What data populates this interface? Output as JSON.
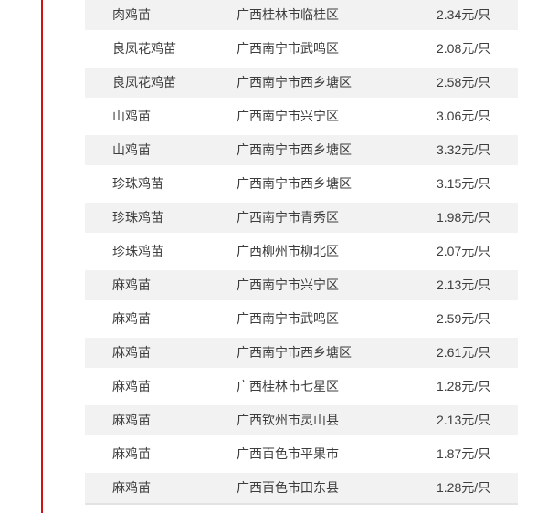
{
  "colors": {
    "accent_line": "#cc1414",
    "stripe_row_bg": "#f2f2f2",
    "text": "#3d3d3d",
    "bottom_border": "#e3e3e3"
  },
  "table": {
    "rows": [
      {
        "product": "肉鸡苗",
        "region": "广西桂林市临桂区",
        "price": "2.34元/只"
      },
      {
        "product": "良凤花鸡苗",
        "region": "广西南宁市武鸣区",
        "price": "2.08元/只"
      },
      {
        "product": "良凤花鸡苗",
        "region": "广西南宁市西乡塘区",
        "price": "2.58元/只"
      },
      {
        "product": "山鸡苗",
        "region": "广西南宁市兴宁区",
        "price": "3.06元/只"
      },
      {
        "product": "山鸡苗",
        "region": "广西南宁市西乡塘区",
        "price": "3.32元/只"
      },
      {
        "product": "珍珠鸡苗",
        "region": "广西南宁市西乡塘区",
        "price": "3.15元/只"
      },
      {
        "product": "珍珠鸡苗",
        "region": "广西南宁市青秀区",
        "price": "1.98元/只"
      },
      {
        "product": "珍珠鸡苗",
        "region": "广西柳州市柳北区",
        "price": "2.07元/只"
      },
      {
        "product": "麻鸡苗",
        "region": "广西南宁市兴宁区",
        "price": "2.13元/只"
      },
      {
        "product": "麻鸡苗",
        "region": "广西南宁市武鸣区",
        "price": "2.59元/只"
      },
      {
        "product": "麻鸡苗",
        "region": "广西南宁市西乡塘区",
        "price": "2.61元/只"
      },
      {
        "product": "麻鸡苗",
        "region": "广西桂林市七星区",
        "price": "1.28元/只"
      },
      {
        "product": "麻鸡苗",
        "region": "广西钦州市灵山县",
        "price": "2.13元/只"
      },
      {
        "product": "麻鸡苗",
        "region": "广西百色市平果市",
        "price": "1.87元/只"
      },
      {
        "product": "麻鸡苗",
        "region": "广西百色市田东县",
        "price": "1.28元/只"
      }
    ]
  }
}
